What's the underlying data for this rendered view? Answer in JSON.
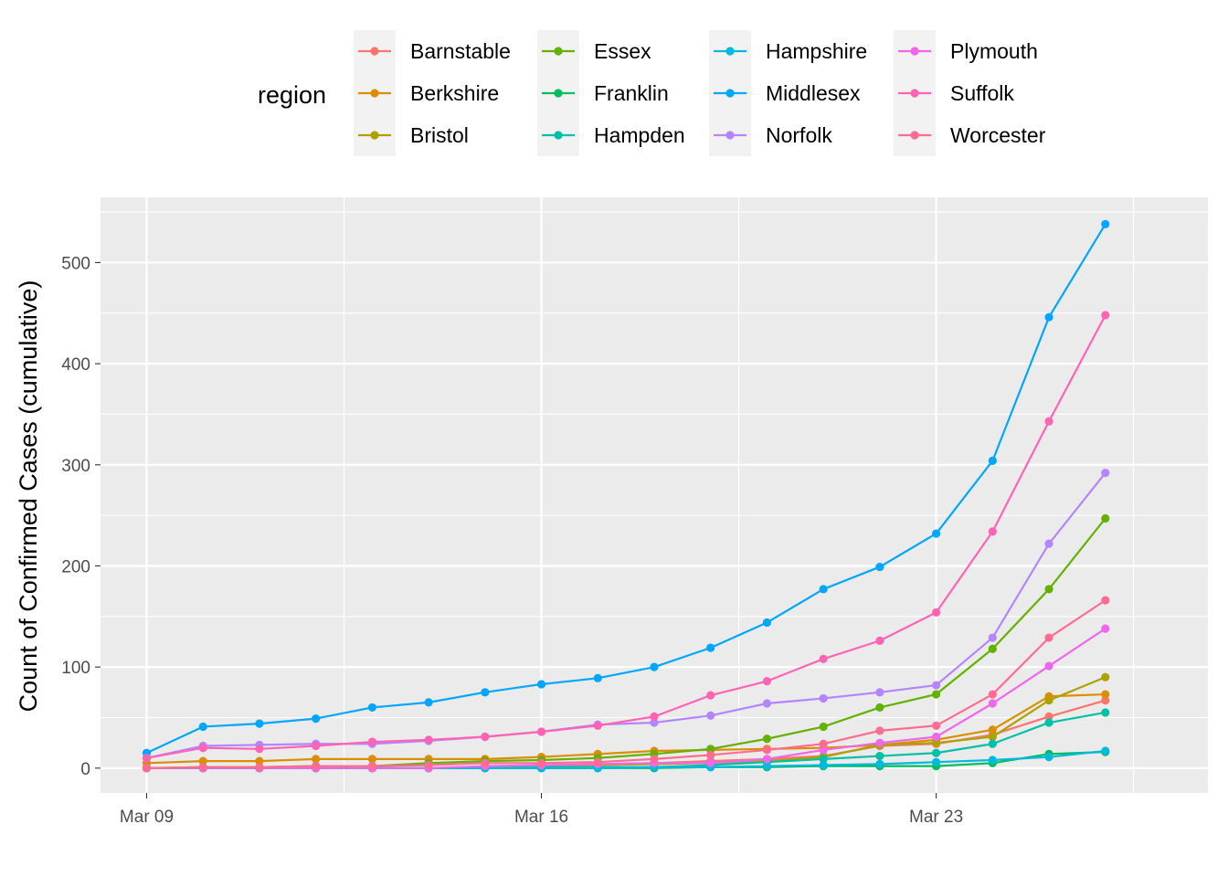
{
  "chart_data": {
    "type": "line",
    "xlabel": "",
    "ylabel": "Count of Confirmed Cases (cumulative)",
    "x_ticks": [
      "Mar 09",
      "Mar 16",
      "Mar 23"
    ],
    "y_ticks": [
      "0",
      "100",
      "200",
      "300",
      "400",
      "500"
    ],
    "x_domain": [
      "2020-03-09",
      "2020-03-27"
    ],
    "ylim": [
      0,
      540
    ],
    "grid": true,
    "legend": {
      "title": "region",
      "position": "top"
    },
    "x": [
      "2020-03-09",
      "2020-03-10",
      "2020-03-11",
      "2020-03-12",
      "2020-03-13",
      "2020-03-14",
      "2020-03-15",
      "2020-03-16",
      "2020-03-17",
      "2020-03-18",
      "2020-03-19",
      "2020-03-20",
      "2020-03-21",
      "2020-03-22",
      "2020-03-23",
      "2020-03-24",
      "2020-03-25",
      "2020-03-26"
    ],
    "series": [
      {
        "name": "Barnstable",
        "color": "#F8766D",
        "values": [
          0,
          0,
          0,
          0,
          0,
          0,
          1,
          2,
          4,
          5,
          7,
          9,
          12,
          22,
          24,
          33,
          51,
          67
        ]
      },
      {
        "name": "Berkshire",
        "color": "#DB8E00",
        "values": [
          5,
          7,
          7,
          9,
          9,
          9,
          9,
          11,
          14,
          17,
          18,
          19,
          20,
          23,
          28,
          38,
          71,
          73
        ]
      },
      {
        "name": "Bristol",
        "color": "#AEA200",
        "values": [
          0,
          0,
          0,
          0,
          0,
          0,
          1,
          2,
          3,
          4,
          5,
          7,
          11,
          23,
          25,
          31,
          67,
          90
        ]
      },
      {
        "name": "Essex",
        "color": "#64B200",
        "values": [
          0,
          1,
          1,
          2,
          2,
          5,
          7,
          8,
          10,
          14,
          19,
          29,
          41,
          60,
          73,
          118,
          177,
          247
        ]
      },
      {
        "name": "Franklin",
        "color": "#00BD5C",
        "values": [
          0,
          0,
          0,
          0,
          0,
          0,
          0,
          0,
          0,
          0,
          1,
          1,
          2,
          2,
          2,
          5,
          14,
          16
        ]
      },
      {
        "name": "Hampden",
        "color": "#00C1A7",
        "values": [
          0,
          0,
          0,
          0,
          0,
          0,
          0,
          1,
          1,
          1,
          3,
          6,
          9,
          12,
          15,
          24,
          45,
          55
        ]
      },
      {
        "name": "Hampshire",
        "color": "#00BADE",
        "values": [
          0,
          0,
          0,
          0,
          0,
          0,
          0,
          0,
          0,
          1,
          1,
          2,
          3,
          4,
          6,
          8,
          11,
          17
        ]
      },
      {
        "name": "Middlesex",
        "color": "#00A6FF",
        "values": [
          15,
          41,
          44,
          49,
          60,
          65,
          75,
          83,
          89,
          100,
          119,
          144,
          177,
          199,
          232,
          304,
          446,
          538
        ]
      },
      {
        "name": "Norfolk",
        "color": "#B385FF",
        "values": [
          10,
          22,
          23,
          24,
          24,
          27,
          31,
          36,
          43,
          45,
          52,
          64,
          69,
          75,
          82,
          129,
          222,
          292
        ]
      },
      {
        "name": "Plymouth",
        "color": "#EF67EB",
        "values": [
          0,
          0,
          0,
          0,
          0,
          0,
          2,
          3,
          4,
          5,
          5,
          9,
          18,
          25,
          31,
          64,
          101,
          138
        ]
      },
      {
        "name": "Suffolk",
        "color": "#FF63B6",
        "values": [
          10,
          20,
          19,
          22,
          26,
          28,
          31,
          36,
          42,
          51,
          72,
          86,
          108,
          126,
          154,
          234,
          343,
          448
        ]
      },
      {
        "name": "Worcester",
        "color": "#FF6C91",
        "values": [
          0,
          1,
          1,
          2,
          2,
          3,
          5,
          5,
          6,
          9,
          13,
          18,
          24,
          37,
          42,
          73,
          129,
          166
        ]
      }
    ]
  }
}
